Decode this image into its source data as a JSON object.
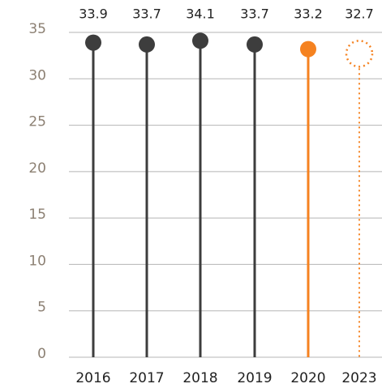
{
  "chart_data": {
    "type": "lollipop",
    "categories": [
      "2016",
      "2017",
      "2018",
      "2019",
      "2020",
      "2023"
    ],
    "values": [
      33.9,
      33.7,
      34.1,
      33.7,
      33.2,
      32.7
    ],
    "colors": [
      "#3d3d3d",
      "#3d3d3d",
      "#3d3d3d",
      "#3d3d3d",
      "#f58220",
      "#f58220"
    ],
    "point_styles": [
      "solid",
      "solid",
      "solid",
      "solid",
      "solid",
      "dotted"
    ],
    "ylim": [
      0,
      35
    ],
    "yticks": [
      0,
      5,
      10,
      15,
      20,
      25,
      30,
      35
    ],
    "grid": true
  }
}
